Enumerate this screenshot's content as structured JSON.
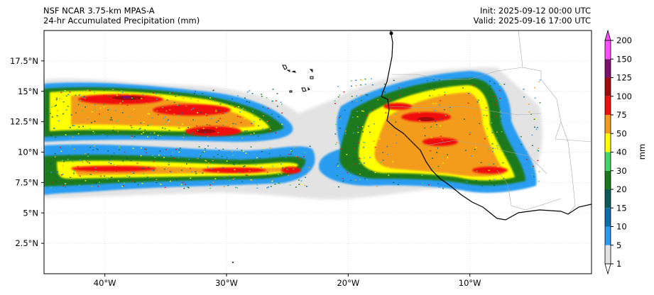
{
  "header": {
    "model": "NSF NCAR 3.75-km MPAS-A",
    "product": "24-hr Accumulated Precipitation (mm)",
    "init": "Init: 2025-09-12 00:00 UTC",
    "valid": "Valid: 2025-09-16 17:00 UTC"
  },
  "map": {
    "lon_range": [
      -45,
      0
    ],
    "lat_range": [
      0,
      20
    ],
    "lon_ticks": [
      {
        "value": -40,
        "label": "40°W"
      },
      {
        "value": -30,
        "label": "30°W"
      },
      {
        "value": -20,
        "label": "20°W"
      },
      {
        "value": -10,
        "label": "10°W"
      }
    ],
    "lat_ticks": [
      {
        "value": 2.5,
        "label": "2.5°N"
      },
      {
        "value": 5,
        "label": "5°N"
      },
      {
        "value": 7.5,
        "label": "7.5°N"
      },
      {
        "value": 10,
        "label": "10°N"
      },
      {
        "value": 12.5,
        "label": "12.5°N"
      },
      {
        "value": 15,
        "label": "15°N"
      },
      {
        "value": 17.5,
        "label": "17.5°N"
      }
    ]
  },
  "colorbar": {
    "label": "mm",
    "levels": [
      "1",
      "5",
      "10",
      "15",
      "20",
      "30",
      "40",
      "50",
      "75",
      "100",
      "125",
      "150",
      "200"
    ],
    "colors": [
      "#e3e3e3",
      "#2c9df0",
      "#0a6fa8",
      "#0a5a5a",
      "#1a7a1a",
      "#43d66b",
      "#ffff00",
      "#f39c1a",
      "#f01010",
      "#a50a0a",
      "#80106e",
      "#ff4dff"
    ]
  },
  "colors": {
    "coastline": "#000000",
    "border": "#a6a6a6",
    "grid": "#cccccc"
  }
}
